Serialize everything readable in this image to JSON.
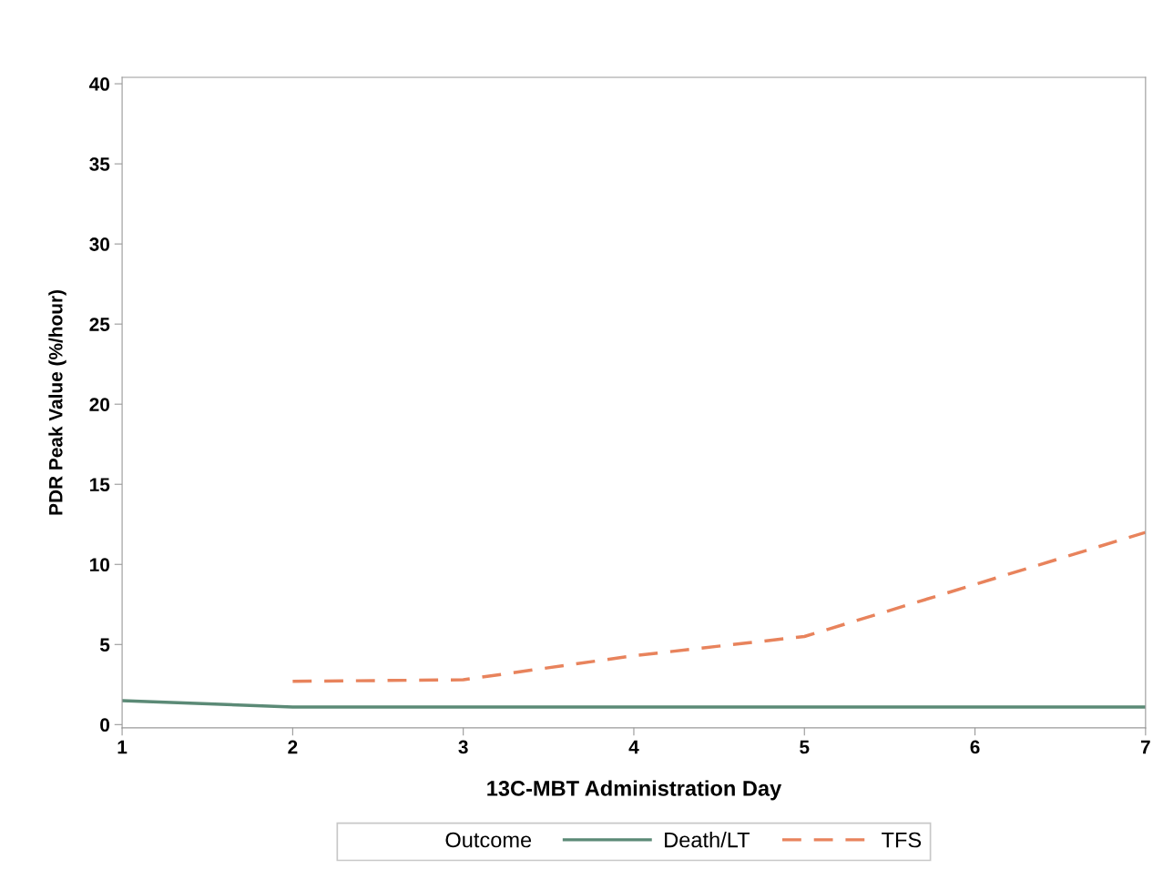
{
  "chart_data": {
    "type": "line",
    "xlabel": "13C-MBT Administration Day",
    "ylabel": "PDR Peak Value (%/hour)",
    "legend_title": "Outcome",
    "xlim": [
      1,
      7
    ],
    "xticks": [
      1,
      2,
      3,
      4,
      5,
      6,
      7
    ],
    "ylim": [
      -0.2,
      40.4
    ],
    "yticks": [
      0,
      5,
      10,
      15,
      20,
      25,
      30,
      35,
      40
    ],
    "grid": false,
    "legend": "bottom",
    "series": [
      {
        "name": "Death/LT",
        "color": "#5b8a76",
        "line_style": "solid",
        "x": [
          1,
          2,
          3,
          4,
          5,
          6,
          7
        ],
        "values": [
          1.5,
          1.1,
          1.1,
          1.1,
          1.1,
          1.1,
          1.1
        ]
      },
      {
        "name": "TFS",
        "color": "#e8835c",
        "line_style": "dashed",
        "x": [
          2,
          3,
          4,
          5,
          6,
          7
        ],
        "values": [
          2.7,
          2.8,
          4.3,
          5.5,
          8.75,
          12.0
        ]
      }
    ]
  }
}
